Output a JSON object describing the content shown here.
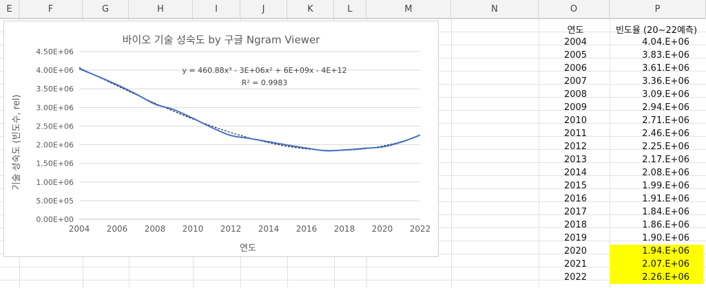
{
  "columns": [
    "E",
    "F",
    "G",
    "H",
    "I",
    "J",
    "K",
    "L",
    "M",
    "N",
    "O",
    "P"
  ],
  "table": {
    "headers": [
      "연도",
      "빈도율 (20~22예측)"
    ],
    "rows": [
      {
        "year": "2004",
        "value": "4.04.E+06"
      },
      {
        "year": "2005",
        "value": "3.83.E+06"
      },
      {
        "year": "2006",
        "value": "3.61.E+06"
      },
      {
        "year": "2007",
        "value": "3.36.E+06"
      },
      {
        "year": "2008",
        "value": "3.09.E+06"
      },
      {
        "year": "2009",
        "value": "2.94.E+06"
      },
      {
        "year": "2010",
        "value": "2.71.E+06"
      },
      {
        "year": "2011",
        "value": "2.46.E+06"
      },
      {
        "year": "2012",
        "value": "2.25.E+06"
      },
      {
        "year": "2013",
        "value": "2.17.E+06"
      },
      {
        "year": "2014",
        "value": "2.08.E+06"
      },
      {
        "year": "2015",
        "value": "1.99.E+06"
      },
      {
        "year": "2016",
        "value": "1.91.E+06"
      },
      {
        "year": "2017",
        "value": "1.84.E+06"
      },
      {
        "year": "2018",
        "value": "1.86.E+06"
      },
      {
        "year": "2019",
        "value": "1.90.E+06"
      },
      {
        "year": "2020",
        "value": "1.94.E+06"
      },
      {
        "year": "2021",
        "value": "2.07.E+06"
      },
      {
        "year": "2022",
        "value": "2.26.E+06"
      }
    ],
    "highlight_color": "#ffff00",
    "highlighted_years": [
      "2020",
      "2021",
      "2022"
    ]
  },
  "chart_data": {
    "type": "line",
    "title": "바이오 기술 성숙도 by 구글 Ngram Viewer",
    "xlabel": "연도",
    "ylabel": "기술 성숙도 (빈도수, rel)",
    "x": [
      2004,
      2005,
      2006,
      2007,
      2008,
      2009,
      2010,
      2011,
      2012,
      2013,
      2014,
      2015,
      2016,
      2017,
      2018,
      2019,
      2020,
      2021,
      2022
    ],
    "series": [
      {
        "values": [
          4040000,
          3830000,
          3610000,
          3360000,
          3090000,
          2940000,
          2710000,
          2460000,
          2250000,
          2170000,
          2080000,
          1990000,
          1910000,
          1840000,
          1860000,
          1900000,
          1940000,
          2070000,
          2260000
        ],
        "color": "#4472c4"
      }
    ],
    "trendline": {
      "type": "polynomial-3",
      "style": "dashed",
      "color": "#000000"
    },
    "equation": "y = 460.88x³ - 3E+06x² + 6E+09x - 4E+12",
    "r_squared": "R² = 0.9983",
    "xlim": [
      2004,
      2022
    ],
    "ylim": [
      0,
      4500000
    ],
    "x_ticks": [
      "2004",
      "2006",
      "2008",
      "2010",
      "2012",
      "2014",
      "2016",
      "2018",
      "2020",
      "2022"
    ],
    "y_ticks": [
      "0.00E+00",
      "5.00E+05",
      "1.00E+06",
      "1.50E+06",
      "2.00E+06",
      "2.50E+06",
      "3.00E+06",
      "3.50E+06",
      "4.00E+06",
      "4.50E+06"
    ],
    "grid": true
  }
}
